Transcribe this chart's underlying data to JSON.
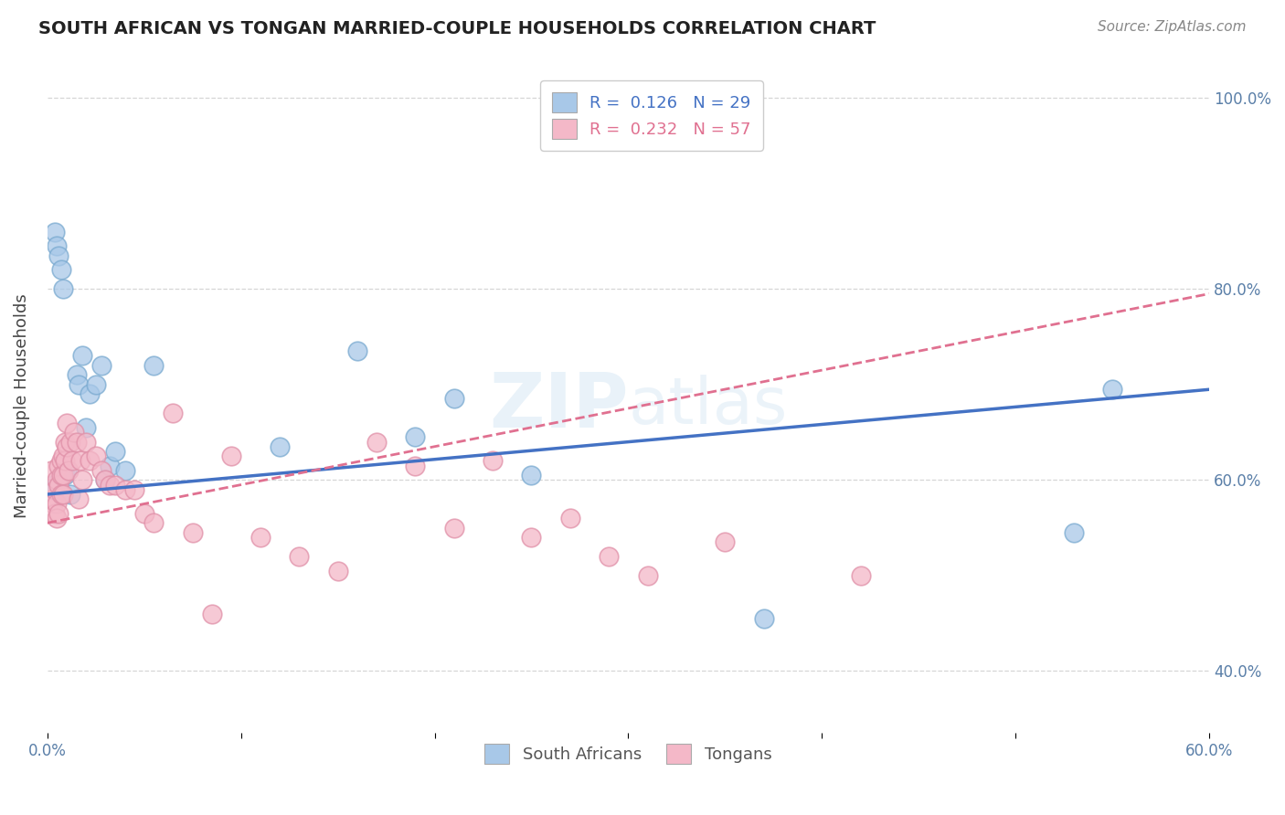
{
  "title": "SOUTH AFRICAN VS TONGAN MARRIED-COUPLE HOUSEHOLDS CORRELATION CHART",
  "source": "Source: ZipAtlas.com",
  "ylabel": "Married-couple Households",
  "legend1": "South Africans",
  "legend2": "Tongans",
  "R1": 0.126,
  "N1": 29,
  "R2": 0.232,
  "N2": 57,
  "color_blue": "#a8c8e8",
  "color_pink": "#f4b8c8",
  "line_blue": "#4472c4",
  "line_pink": "#e07090",
  "xmin": 0.0,
  "xmax": 0.6,
  "ymin": 0.335,
  "ymax": 1.02,
  "x_ticks": [
    0.0,
    0.1,
    0.2,
    0.3,
    0.4,
    0.5,
    0.6
  ],
  "y_ticks": [
    0.4,
    0.6,
    0.8,
    1.0
  ],
  "watermark": "ZIPatlas",
  "background_color": "#ffffff",
  "grid_color": "#cccccc",
  "sa_x": [
    0.003,
    0.004,
    0.005,
    0.006,
    0.007,
    0.008,
    0.009,
    0.01,
    0.012,
    0.015,
    0.016,
    0.018,
    0.02,
    0.022,
    0.025,
    0.028,
    0.03,
    0.032,
    0.035,
    0.04,
    0.055,
    0.12,
    0.16,
    0.19,
    0.21,
    0.25,
    0.37,
    0.53,
    0.55
  ],
  "sa_y": [
    0.595,
    0.86,
    0.845,
    0.835,
    0.82,
    0.8,
    0.605,
    0.61,
    0.585,
    0.71,
    0.7,
    0.73,
    0.655,
    0.69,
    0.7,
    0.72,
    0.6,
    0.615,
    0.63,
    0.61,
    0.72,
    0.635,
    0.735,
    0.645,
    0.685,
    0.605,
    0.455,
    0.545,
    0.695
  ],
  "to_x": [
    0.002,
    0.003,
    0.003,
    0.004,
    0.004,
    0.005,
    0.005,
    0.005,
    0.006,
    0.006,
    0.006,
    0.007,
    0.007,
    0.007,
    0.008,
    0.008,
    0.008,
    0.009,
    0.009,
    0.01,
    0.01,
    0.011,
    0.012,
    0.013,
    0.014,
    0.015,
    0.016,
    0.017,
    0.018,
    0.02,
    0.022,
    0.025,
    0.028,
    0.03,
    0.032,
    0.035,
    0.04,
    0.045,
    0.05,
    0.055,
    0.065,
    0.075,
    0.085,
    0.095,
    0.11,
    0.13,
    0.15,
    0.17,
    0.19,
    0.21,
    0.23,
    0.25,
    0.27,
    0.29,
    0.31,
    0.35,
    0.42
  ],
  "to_y": [
    0.61,
    0.58,
    0.575,
    0.59,
    0.565,
    0.6,
    0.575,
    0.56,
    0.615,
    0.595,
    0.565,
    0.62,
    0.605,
    0.585,
    0.625,
    0.605,
    0.585,
    0.64,
    0.62,
    0.66,
    0.635,
    0.61,
    0.64,
    0.62,
    0.65,
    0.64,
    0.58,
    0.62,
    0.6,
    0.64,
    0.62,
    0.625,
    0.61,
    0.6,
    0.595,
    0.595,
    0.59,
    0.59,
    0.565,
    0.555,
    0.67,
    0.545,
    0.46,
    0.625,
    0.54,
    0.52,
    0.505,
    0.64,
    0.615,
    0.55,
    0.62,
    0.54,
    0.56,
    0.52,
    0.5,
    0.535,
    0.5
  ]
}
